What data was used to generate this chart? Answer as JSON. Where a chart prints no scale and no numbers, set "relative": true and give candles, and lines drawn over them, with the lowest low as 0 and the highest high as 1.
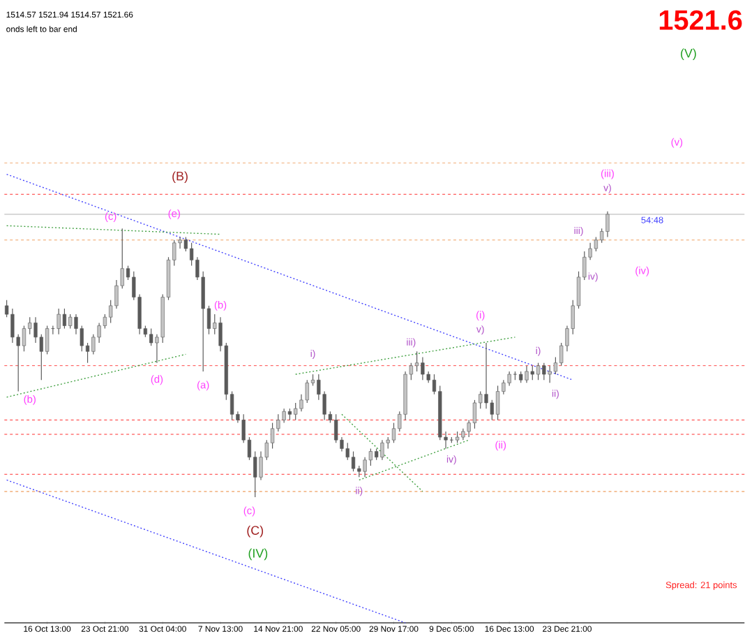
{
  "chart_data": {
    "type": "candlestick",
    "relative": true,
    "color": "#5a5a5a",
    "categories": [
      null,
      null,
      null,
      null,
      null,
      null,
      null,
      "16 Oct 13:00",
      null,
      null,
      null,
      null,
      null,
      null,
      null,
      null,
      null,
      "23 Oct 21:00",
      null,
      null,
      null,
      null,
      null,
      null,
      null,
      null,
      null,
      "31 Oct 04:00",
      null,
      null,
      null,
      null,
      null,
      null,
      null,
      null,
      null,
      "7 Nov 13:00",
      null,
      null,
      null,
      null,
      null,
      null,
      null,
      null,
      null,
      "14 Nov 21:00",
      null,
      null,
      null,
      null,
      null,
      null,
      null,
      null,
      null,
      "22 Nov 05:00",
      null,
      null,
      null,
      null,
      null,
      null,
      null,
      null,
      null,
      "29 Nov 17:00",
      null,
      null,
      null,
      null,
      null,
      null,
      null,
      null,
      null,
      "9 Dec 05:00",
      null,
      null,
      null,
      null,
      null,
      null,
      null,
      null,
      null,
      "16 Dec 13:00",
      null,
      null,
      null,
      null,
      null,
      null,
      null,
      null,
      null,
      "23 Dec 21:00",
      null,
      null,
      null,
      null,
      null,
      null,
      null
    ],
    "ohlc": [
      [
        0.67,
        0.69,
        0.63,
        0.64
      ],
      [
        0.64,
        0.66,
        0.54,
        0.56
      ],
      [
        0.56,
        0.57,
        0.37,
        0.53
      ],
      [
        0.53,
        0.6,
        0.51,
        0.59
      ],
      [
        0.59,
        0.63,
        0.57,
        0.61
      ],
      [
        0.61,
        0.63,
        0.54,
        0.56
      ],
      [
        0.56,
        0.57,
        0.41,
        0.51
      ],
      [
        0.51,
        0.6,
        0.5,
        0.59
      ],
      [
        0.59,
        0.6,
        0.57,
        0.59
      ],
      [
        0.59,
        0.66,
        0.57,
        0.64
      ],
      [
        0.64,
        0.66,
        0.59,
        0.6
      ],
      [
        0.6,
        0.64,
        0.59,
        0.63
      ],
      [
        0.63,
        0.64,
        0.57,
        0.59
      ],
      [
        0.59,
        0.6,
        0.51,
        0.53
      ],
      [
        0.53,
        0.54,
        0.47,
        0.51
      ],
      [
        0.51,
        0.57,
        0.5,
        0.56
      ],
      [
        0.56,
        0.61,
        0.54,
        0.6
      ],
      [
        0.6,
        0.64,
        0.59,
        0.63
      ],
      [
        0.63,
        0.69,
        0.61,
        0.67
      ],
      [
        0.67,
        0.76,
        0.66,
        0.74
      ],
      [
        0.74,
        0.94,
        0.73,
        0.8
      ],
      [
        0.8,
        0.81,
        0.76,
        0.77
      ],
      [
        0.77,
        0.79,
        0.69,
        0.7
      ],
      [
        0.7,
        0.71,
        0.57,
        0.59
      ],
      [
        0.59,
        0.6,
        0.56,
        0.57
      ],
      [
        0.57,
        0.59,
        0.53,
        0.54
      ],
      [
        0.54,
        0.57,
        0.47,
        0.56
      ],
      [
        0.56,
        0.71,
        0.54,
        0.7
      ],
      [
        0.7,
        0.84,
        0.69,
        0.83
      ],
      [
        0.83,
        0.9,
        0.81,
        0.89
      ],
      [
        0.89,
        0.91,
        0.87,
        0.9
      ],
      [
        0.9,
        0.91,
        0.86,
        0.87
      ],
      [
        0.87,
        0.89,
        0.81,
        0.83
      ],
      [
        0.83,
        0.84,
        0.76,
        0.77
      ],
      [
        0.77,
        0.79,
        0.44,
        0.66
      ],
      [
        0.66,
        0.67,
        0.57,
        0.59
      ],
      [
        0.59,
        0.64,
        0.57,
        0.61
      ],
      [
        0.61,
        0.63,
        0.51,
        0.53
      ],
      [
        0.53,
        0.54,
        0.34,
        0.36
      ],
      [
        0.36,
        0.37,
        0.27,
        0.29
      ],
      [
        0.29,
        0.3,
        0.26,
        0.27
      ],
      [
        0.27,
        0.29,
        0.19,
        0.2
      ],
      [
        0.2,
        0.21,
        0.13,
        0.14
      ],
      [
        0.14,
        0.16,
        0,
        0.07
      ],
      [
        0.07,
        0.16,
        0.06,
        0.14
      ],
      [
        0.14,
        0.2,
        0.13,
        0.19
      ],
      [
        0.19,
        0.26,
        0.17,
        0.24
      ],
      [
        0.24,
        0.29,
        0.23,
        0.27
      ],
      [
        0.27,
        0.31,
        0.26,
        0.3
      ],
      [
        0.3,
        0.31,
        0.27,
        0.29
      ],
      [
        0.29,
        0.33,
        0.27,
        0.31
      ],
      [
        0.31,
        0.36,
        0.3,
        0.34
      ],
      [
        0.34,
        0.41,
        0.33,
        0.4
      ],
      [
        0.4,
        0.43,
        0.39,
        0.41
      ],
      [
        0.41,
        0.43,
        0.34,
        0.36
      ],
      [
        0.36,
        0.37,
        0.27,
        0.29
      ],
      [
        0.29,
        0.3,
        0.26,
        0.27
      ],
      [
        0.27,
        0.29,
        0.19,
        0.2
      ],
      [
        0.2,
        0.21,
        0.16,
        0.17
      ],
      [
        0.17,
        0.19,
        0.13,
        0.14
      ],
      [
        0.14,
        0.16,
        0.09,
        0.1
      ],
      [
        0.1,
        0.11,
        0.07,
        0.09
      ],
      [
        0.09,
        0.14,
        0.07,
        0.13
      ],
      [
        0.13,
        0.17,
        0.11,
        0.16
      ],
      [
        0.16,
        0.17,
        0.13,
        0.14
      ],
      [
        0.14,
        0.2,
        0.13,
        0.19
      ],
      [
        0.19,
        0.21,
        0.17,
        0.2
      ],
      [
        0.2,
        0.26,
        0.19,
        0.24
      ],
      [
        0.24,
        0.3,
        0.23,
        0.29
      ],
      [
        0.29,
        0.44,
        0.27,
        0.43
      ],
      [
        0.43,
        0.47,
        0.41,
        0.46
      ],
      [
        0.46,
        0.51,
        0.44,
        0.47
      ],
      [
        0.47,
        0.49,
        0.41,
        0.43
      ],
      [
        0.43,
        0.44,
        0.4,
        0.41
      ],
      [
        0.41,
        0.43,
        0.36,
        0.37
      ],
      [
        0.37,
        0.39,
        0.2,
        0.21
      ],
      [
        0.21,
        0.23,
        0.17,
        0.2
      ],
      [
        0.2,
        0.21,
        0.19,
        0.2
      ],
      [
        0.2,
        0.23,
        0.19,
        0.21
      ],
      [
        0.21,
        0.24,
        0.2,
        0.23
      ],
      [
        0.23,
        0.27,
        0.21,
        0.26
      ],
      [
        0.26,
        0.34,
        0.24,
        0.33
      ],
      [
        0.33,
        0.37,
        0.31,
        0.36
      ],
      [
        0.36,
        0.54,
        0.31,
        0.33
      ],
      [
        0.33,
        0.34,
        0.27,
        0.29
      ],
      [
        0.29,
        0.39,
        0.27,
        0.37
      ],
      [
        0.37,
        0.41,
        0.36,
        0.4
      ],
      [
        0.4,
        0.44,
        0.39,
        0.43
      ],
      [
        0.43,
        0.44,
        0.41,
        0.43
      ],
      [
        0.43,
        0.44,
        0.4,
        0.41
      ],
      [
        0.41,
        0.46,
        0.4,
        0.44
      ],
      [
        0.44,
        0.46,
        0.41,
        0.43
      ],
      [
        0.43,
        0.47,
        0.41,
        0.46
      ],
      [
        0.46,
        0.47,
        0.41,
        0.43
      ],
      [
        0.43,
        0.46,
        0.4,
        0.44
      ],
      [
        0.44,
        0.49,
        0.43,
        0.47
      ],
      [
        0.47,
        0.54,
        0.46,
        0.53
      ],
      [
        0.53,
        0.6,
        0.51,
        0.59
      ],
      [
        0.59,
        0.69,
        0.57,
        0.67
      ],
      [
        0.67,
        0.79,
        0.66,
        0.77
      ],
      [
        0.77,
        0.86,
        0.76,
        0.84
      ],
      [
        0.84,
        0.89,
        0.83,
        0.87
      ],
      [
        0.87,
        0.91,
        0.86,
        0.9
      ],
      [
        0.9,
        0.94,
        0.89,
        0.93
      ],
      [
        0.93,
        1,
        0.91,
        0.99
      ]
    ],
    "series": [
      {
        "type": "line",
        "color": "#4040ff",
        "line_style": "dotted",
        "values": [
          1.13,
          null,
          null,
          null,
          null,
          null,
          null,
          null,
          null,
          null,
          null,
          null,
          null,
          null,
          null,
          null,
          null,
          null,
          null,
          null,
          null,
          null,
          null,
          null,
          null,
          null,
          null,
          null,
          null,
          null,
          null,
          null,
          null,
          null,
          null,
          null,
          null,
          null,
          null,
          null,
          null,
          null,
          null,
          null,
          null,
          null,
          null,
          null,
          null,
          null,
          null,
          null,
          null,
          null,
          null,
          null,
          null,
          null,
          null,
          null,
          null,
          null,
          null,
          null,
          null,
          null,
          null,
          null,
          null,
          null,
          null,
          null,
          null,
          null,
          null,
          null,
          null,
          null,
          null,
          null,
          null,
          null,
          null,
          null,
          null,
          null,
          null,
          null,
          null,
          null,
          null,
          null,
          null,
          null,
          null,
          null,
          null,
          null,
          0.41,
          null,
          null,
          null,
          null,
          null,
          null
        ]
      },
      {
        "type": "line",
        "color": "#4040ff",
        "line_style": "dotted",
        "values": [
          0.06,
          null,
          null,
          null,
          null,
          null,
          null,
          null,
          null,
          null,
          null,
          null,
          null,
          null,
          null,
          null,
          null,
          null,
          null,
          null,
          null,
          null,
          null,
          null,
          null,
          null,
          null,
          null,
          null,
          null,
          null,
          null,
          null,
          null,
          null,
          null,
          null,
          null,
          null,
          null,
          null,
          null,
          null,
          null,
          null,
          null,
          null,
          null,
          null,
          null,
          null,
          null,
          null,
          null,
          null,
          null,
          null,
          null,
          null,
          null,
          null,
          null,
          null,
          null,
          null,
          null,
          null,
          null,
          null,
          -0.44,
          null,
          null,
          null,
          null,
          null,
          null,
          null,
          null,
          null,
          null,
          null,
          null,
          null,
          null,
          null,
          null,
          null,
          null,
          null,
          null,
          null,
          null,
          null,
          null,
          null,
          null,
          null,
          null,
          null,
          null,
          null,
          null,
          null,
          null,
          null
        ]
      },
      {
        "type": "line",
        "color": "#40a040",
        "line_style": "dotted",
        "values": [
          0.95,
          null,
          null,
          null,
          null,
          null,
          null,
          null,
          null,
          null,
          null,
          null,
          null,
          null,
          null,
          null,
          null,
          null,
          null,
          null,
          null,
          null,
          null,
          null,
          null,
          null,
          null,
          null,
          null,
          null,
          null,
          null,
          null,
          null,
          null,
          null,
          null,
          0.92,
          null,
          null,
          null,
          null,
          null,
          null,
          null,
          null,
          null,
          null,
          null,
          null,
          null,
          null,
          null,
          null,
          null,
          null,
          null,
          null,
          null,
          null,
          null,
          null,
          null,
          null,
          null,
          null,
          null,
          null,
          null,
          null,
          null,
          null,
          null,
          null,
          null,
          null,
          null,
          null,
          null,
          null,
          null,
          null,
          null,
          null,
          null,
          null,
          null,
          null,
          null,
          null,
          null,
          null,
          null,
          null,
          null,
          null,
          null,
          null,
          null,
          null,
          null,
          null,
          null,
          null,
          null
        ]
      },
      {
        "type": "line",
        "color": "#40a040",
        "line_style": "dotted",
        "values": [
          0.35,
          null,
          null,
          null,
          null,
          null,
          null,
          null,
          null,
          null,
          null,
          null,
          null,
          null,
          null,
          null,
          null,
          null,
          null,
          null,
          null,
          null,
          null,
          null,
          null,
          null,
          null,
          null,
          null,
          null,
          null,
          0.5,
          null,
          null,
          null,
          null,
          null,
          null,
          null,
          null,
          null,
          null,
          null,
          null,
          null,
          null,
          null,
          null,
          null,
          null,
          null,
          null,
          null,
          null,
          null,
          null,
          null,
          null,
          null,
          null,
          null,
          null,
          null,
          null,
          null,
          null,
          null,
          null,
          null,
          null,
          null,
          null,
          null,
          null,
          null,
          null,
          null,
          null,
          null,
          null,
          null,
          null,
          null,
          null,
          null,
          null,
          null,
          null,
          null,
          null,
          null,
          null,
          null,
          null,
          null,
          null,
          null,
          null,
          null,
          null,
          null,
          null,
          null,
          null,
          null
        ]
      },
      {
        "type": "line",
        "color": "#40a040",
        "line_style": "dotted",
        "values": [
          null,
          null,
          null,
          null,
          null,
          null,
          null,
          null,
          null,
          null,
          null,
          null,
          null,
          null,
          null,
          null,
          null,
          null,
          null,
          null,
          null,
          null,
          null,
          null,
          null,
          null,
          null,
          null,
          null,
          null,
          null,
          null,
          null,
          null,
          null,
          null,
          null,
          null,
          null,
          null,
          null,
          null,
          null,
          null,
          null,
          null,
          null,
          null,
          null,
          null,
          0.43,
          null,
          null,
          null,
          null,
          null,
          null,
          null,
          null,
          null,
          null,
          null,
          null,
          null,
          null,
          null,
          null,
          null,
          null,
          null,
          null,
          null,
          null,
          null,
          null,
          null,
          null,
          null,
          null,
          null,
          null,
          null,
          null,
          null,
          null,
          null,
          null,
          null,
          0.56,
          null,
          null,
          null,
          null,
          null,
          null,
          null,
          null,
          null,
          null,
          null,
          null,
          null,
          null,
          null,
          null
        ]
      },
      {
        "type": "line",
        "color": "#40a040",
        "line_style": "dotted",
        "values": [
          null,
          null,
          null,
          null,
          null,
          null,
          null,
          null,
          null,
          null,
          null,
          null,
          null,
          null,
          null,
          null,
          null,
          null,
          null,
          null,
          null,
          null,
          null,
          null,
          null,
          null,
          null,
          null,
          null,
          null,
          null,
          null,
          null,
          null,
          null,
          null,
          null,
          null,
          null,
          null,
          null,
          null,
          null,
          null,
          null,
          null,
          null,
          null,
          null,
          null,
          null,
          null,
          null,
          null,
          null,
          null,
          null,
          null,
          null,
          null,
          null,
          0.06,
          null,
          null,
          null,
          null,
          null,
          null,
          null,
          null,
          null,
          null,
          null,
          null,
          null,
          null,
          null,
          null,
          null,
          null,
          0.2,
          null,
          null,
          null,
          null,
          null,
          null,
          null,
          null,
          null,
          null,
          null,
          null,
          null,
          null,
          null,
          null,
          null,
          null,
          null,
          null,
          null,
          null,
          null,
          null
        ]
      },
      {
        "type": "line",
        "color": "#40a040",
        "line_style": "dotted",
        "values": [
          null,
          null,
          null,
          null,
          null,
          null,
          null,
          null,
          null,
          null,
          null,
          null,
          null,
          null,
          null,
          null,
          null,
          null,
          null,
          null,
          null,
          null,
          null,
          null,
          null,
          null,
          null,
          null,
          null,
          null,
          null,
          null,
          null,
          null,
          null,
          null,
          null,
          null,
          null,
          null,
          null,
          null,
          null,
          null,
          null,
          null,
          null,
          null,
          null,
          null,
          null,
          null,
          null,
          null,
          null,
          null,
          null,
          null,
          0.29,
          null,
          null,
          null,
          null,
          null,
          null,
          null,
          null,
          null,
          null,
          null,
          null,
          null,
          0.02,
          null,
          null,
          null,
          null,
          null,
          null,
          null,
          null,
          null,
          null,
          null,
          null,
          null,
          null,
          null,
          null,
          null,
          null,
          null,
          null,
          null,
          null,
          null,
          null,
          null,
          null,
          null,
          null,
          null,
          null,
          null,
          null
        ]
      }
    ],
    "ref_lines": [
      {
        "axis": "y",
        "value": 1.17,
        "color": "#f0a060",
        "line_style": "dashed"
      },
      {
        "axis": "y",
        "value": 1.06,
        "color": "#ff3030",
        "line_style": "dashed"
      },
      {
        "axis": "y",
        "value": 0.99,
        "color": "#c0c0c0",
        "line_style": "solid"
      },
      {
        "axis": "y",
        "value": 0.9,
        "color": "#f0a060",
        "line_style": "dashed"
      },
      {
        "axis": "y",
        "value": 0.46,
        "color": "#ff3030",
        "line_style": "dashed"
      },
      {
        "axis": "y",
        "value": 0.27,
        "color": "#ff3030",
        "line_style": "dashed"
      },
      {
        "axis": "y",
        "value": 0.22,
        "color": "#ff3030",
        "line_style": "dashed"
      },
      {
        "axis": "y",
        "value": 0.08,
        "color": "#ff3030",
        "line_style": "dashed"
      },
      {
        "axis": "y",
        "value": 0.02,
        "color": "#f0a060",
        "line_style": "dashed"
      }
    ],
    "annotations": [
      "1514.57 1521.94 1514.57 1521.66",
      "onds left to bar end",
      "1521.6",
      "Spread: 21 points",
      "54:48",
      "(B)",
      "(c)",
      "(e)",
      "(b)",
      "(d)",
      "(a)",
      "(b)",
      "i)",
      "(c)",
      "(C)",
      "(IV)",
      {
        "text": "ii)",
        "y": 0.02
      },
      "iii)",
      "(i)",
      "v)",
      "iv)",
      "(ii)",
      "i)",
      "ii)",
      "iii)",
      "iv)",
      {
        "text": "v)",
        "y": 1.08
      },
      "(iii)",
      "(v)",
      "(iv)",
      "(V)"
    ]
  }
}
